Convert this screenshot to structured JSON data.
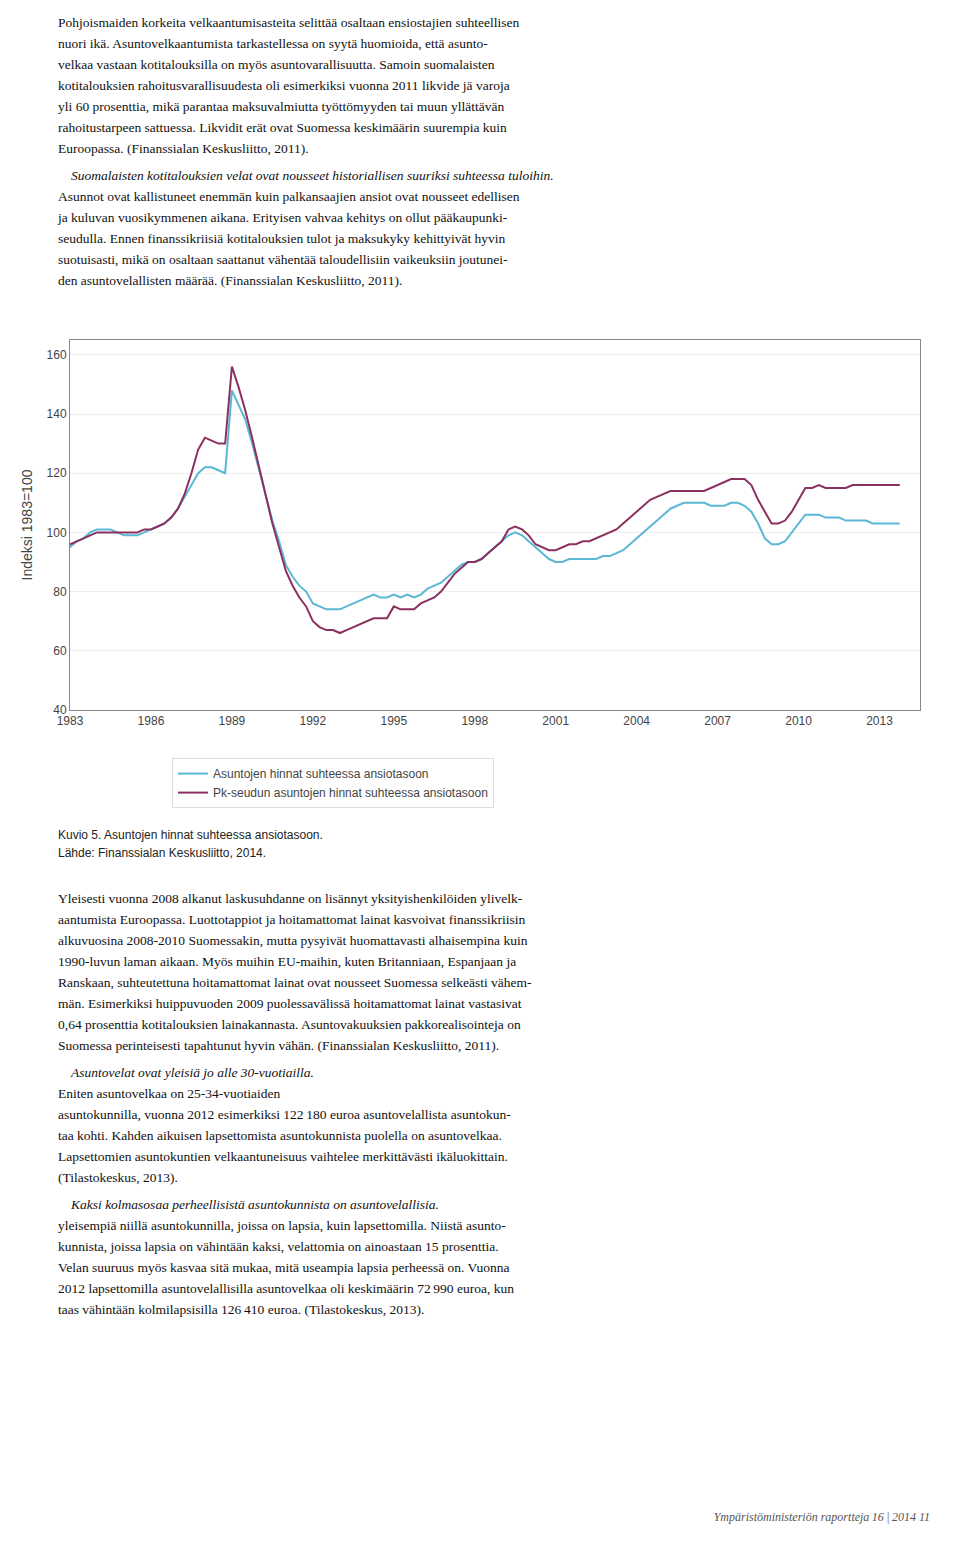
{
  "chart_data": {
    "type": "line",
    "ylabel": "Indeksi 1983=100",
    "xlim": [
      1983,
      2014.5
    ],
    "xticks": [
      1983,
      1986,
      1989,
      1992,
      1995,
      1998,
      2001,
      2004,
      2007,
      2010,
      2013
    ],
    "ylim": [
      40,
      165
    ],
    "yticks": [
      40,
      60,
      80,
      100,
      120,
      140,
      160
    ],
    "grid": "y",
    "legend": "bottom",
    "x": [
      1983.0,
      1983.25,
      1983.5,
      1983.75,
      1984.0,
      1984.25,
      1984.5,
      1984.75,
      1985.0,
      1985.25,
      1985.5,
      1985.75,
      1986.0,
      1986.25,
      1986.5,
      1986.75,
      1987.0,
      1987.25,
      1987.5,
      1987.75,
      1988.0,
      1988.25,
      1988.5,
      1988.75,
      1989.0,
      1989.25,
      1989.5,
      1989.75,
      1990.0,
      1990.25,
      1990.5,
      1990.75,
      1991.0,
      1991.25,
      1991.5,
      1991.75,
      1992.0,
      1992.25,
      1992.5,
      1992.75,
      1993.0,
      1993.25,
      1993.5,
      1993.75,
      1994.0,
      1994.25,
      1994.5,
      1994.75,
      1995.0,
      1995.25,
      1995.5,
      1995.75,
      1996.0,
      1996.25,
      1996.5,
      1996.75,
      1997.0,
      1997.25,
      1997.5,
      1997.75,
      1998.0,
      1998.25,
      1998.5,
      1998.75,
      1999.0,
      1999.25,
      1999.5,
      1999.75,
      2000.0,
      2000.25,
      2000.5,
      2000.75,
      2001.0,
      2001.25,
      2001.5,
      2001.75,
      2002.0,
      2002.25,
      2002.5,
      2002.75,
      2003.0,
      2003.25,
      2003.5,
      2003.75,
      2004.0,
      2004.25,
      2004.5,
      2004.75,
      2005.0,
      2005.25,
      2005.5,
      2005.75,
      2006.0,
      2006.25,
      2006.5,
      2006.75,
      2007.0,
      2007.25,
      2007.5,
      2007.75,
      2008.0,
      2008.25,
      2008.5,
      2008.75,
      2009.0,
      2009.25,
      2009.5,
      2009.75,
      2010.0,
      2010.25,
      2010.5,
      2010.75,
      2011.0,
      2011.25,
      2011.5,
      2011.75,
      2012.0,
      2012.25,
      2012.5,
      2012.75,
      2013.0,
      2013.25,
      2013.5,
      2013.75
    ],
    "series": [
      {
        "name": "Asuntojen hinnat suhteessa ansiotasoon",
        "color": "#5BB8D4",
        "values": [
          95,
          97,
          98,
          100,
          101,
          101,
          101,
          100,
          99,
          99,
          99,
          100,
          101,
          102,
          103,
          105,
          108,
          112,
          116,
          120,
          122,
          122,
          121,
          120,
          148,
          143,
          138,
          130,
          121,
          113,
          104,
          97,
          89,
          85,
          82,
          80,
          76,
          75,
          74,
          74,
          74,
          75,
          76,
          77,
          78,
          79,
          78,
          78,
          79,
          78,
          79,
          78,
          79,
          81,
          82,
          83,
          85,
          87,
          89,
          90,
          90,
          91,
          93,
          95,
          97,
          99,
          100,
          99,
          97,
          95,
          93,
          91,
          90,
          90,
          91,
          91,
          91,
          91,
          91,
          92,
          92,
          93,
          94,
          96,
          98,
          100,
          102,
          104,
          106,
          108,
          109,
          110,
          110,
          110,
          110,
          109,
          109,
          109,
          110,
          110,
          109,
          107,
          103,
          98,
          96,
          96,
          97,
          100,
          103,
          106,
          106,
          106,
          105,
          105,
          105,
          104,
          104,
          104,
          104,
          103,
          103,
          103,
          103,
          103
        ]
      },
      {
        "name": "Pk-seudun asuntojen hinnat suhteessa ansiotasoon",
        "color": "#8B3060",
        "values": [
          96,
          97,
          98,
          99,
          100,
          100,
          100,
          100,
          100,
          100,
          100,
          101,
          101,
          102,
          103,
          105,
          108,
          113,
          120,
          128,
          132,
          131,
          130,
          130,
          156,
          149,
          141,
          132,
          122,
          112,
          103,
          95,
          87,
          82,
          78,
          75,
          70,
          68,
          67,
          67,
          66,
          67,
          68,
          69,
          70,
          71,
          71,
          71,
          75,
          74,
          74,
          74,
          76,
          77,
          78,
          80,
          83,
          86,
          88,
          90,
          90,
          91,
          93,
          95,
          97,
          101,
          102,
          101,
          99,
          96,
          95,
          94,
          94,
          95,
          96,
          96,
          97,
          97,
          98,
          99,
          100,
          101,
          103,
          105,
          107,
          109,
          111,
          112,
          113,
          114,
          114,
          114,
          114,
          114,
          114,
          115,
          116,
          117,
          118,
          118,
          118,
          116,
          111,
          107,
          103,
          103,
          104,
          107,
          111,
          115,
          115,
          116,
          115,
          115,
          115,
          115,
          116,
          116,
          116,
          116,
          116,
          116,
          116,
          116
        ]
      }
    ],
    "annotations": [
      [
        "Pohjoismaiden korkeita velkaantumisasteita selittää osaltaan ensiostajien suhteellisen",
        "nuori ikä. Asuntovelkaantumista tarkastellessa on syytä huomioida, että asunto-",
        "velkaa vastaan kotitalouksilla on myös asuntovarallisuutta. Samoin suomalaisten",
        "kotitalouksien rahoitusvarallisuudesta oli esimerkiksi vuonna 2011 likvide jä varoja",
        "yli 60 prosenttia, mikä parantaa maksuvalmiutta työttömyyden tai muun yllättävän",
        "rahoitustarpeen sattuessa. Likvidit erät ovat Suomessa keskimäärin suurempia kuin",
        "Euroopassa. (Finanssialan Keskusliitto, 2011)."
      ],
      [
        "Suomalaisten kotitalouksien velat ovat nousseet historiallisen suuriksi suhteessa tuloihin.",
        "Asunnot ovat kallistuneet enemmän kuin palkansaajien ansiot ovat nousseet edellisen",
        "ja kuluvan vuosikymmenen aikana. Erityisen vahvaa kehitys on ollut pääkaupunki-",
        "seudulla. Ennen finanssikriisiä kotitalouksien tulot ja maksukyky kehittyivät hyvin",
        "suotuisasti, mikä on osaltaan saattanut vähentää taloudellisiin vaikeuksiin joutunei-",
        "den asuntovelallisten määrää. (Finanssialan Keskusliitto, 2011)."
      ],
      [
        "Kuvio 5. Asuntojen hinnat suhteessa ansiotasoon.",
        "Lähde: Finanssialan Keskusliitto, 2014."
      ],
      [
        "Yleisesti vuonna 2008 alkanut laskusuhdanne on lisännyt yksityishenkilöiden ylivelk-",
        "aantumista Euroopassa. Luottotappiot ja hoitamattomat lainat kasvoivat finanssikriisin",
        "alkuvuosina 2008-2010 Suomessakin, mutta pysyivät huomattavasti alhaisempina kuin",
        "1990-luvun laman aikaan. Myös muihin EU-maihin, kuten Britanniaan, Espanjaan ja",
        "Ranskaan, suhteutettuna hoitamattomat lainat ovat nousseet Suomessa selkeästi vähem-",
        "män. Esimerkiksi huippuvuoden 2009 puolessavälissä hoitamattomat lainat vastasivat",
        "0,64 prosenttia kotitalouksien lainakannasta. Asuntovakuuksien pakkorealisointeja on",
        "Suomessa perinteisesti tapahtunut hyvin vähän. (Finanssialan Keskusliitto, 2011)."
      ],
      [
        "Asuntovelat ovat yleisiä jo alle 30-vuotiailla.",
        "Eniten asuntovelkaa on 25-34-vuotiaiden",
        "asuntokunnilla, vuonna 2012 esimerkiksi 122 180 euroa asuntovelallista asuntokun-",
        "taa kohti. Kahden aikuisen lapsettomista asuntokunnista puolella on asuntovelkaa.",
        "Lapsettomien asuntokuntien velkaantuneisuus vaihtelee merkittävästi ikäluokittain.",
        "(Tilastokeskus, 2013)."
      ],
      [
        "Kaksi kolmasosaa perheellisistä asuntokunnista on asuntovelallisia.",
        "yleisempiä niillä asuntokunnilla, joissa on lapsia, kuin lapsettomilla. Niistä asunto-",
        "kunnista, joissa lapsia on vähintään kaksi, velattomia on ainoastaan 15 prosenttia.",
        "Velan suuruus myös kasvaa sitä mukaa, mitä useampia lapsia perheessä on. Vuonna",
        "2012 lapsettomilla asuntovelallisilla asuntovelkaa oli keskimäärin 72 990 euroa, kun",
        "taas vähintään kolmilapsisilla 126 410 euroa. (Tilastokeskus, 2013)."
      ],
      [
        "Ympäristöministeriön raportteja 16 | 2014   11"
      ]
    ]
  }
}
